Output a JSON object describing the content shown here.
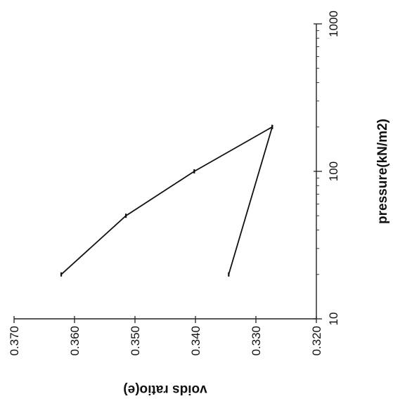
{
  "chart_data": {
    "type": "line",
    "orientation": "rotated-90",
    "xlabel": "pressure(kN/m2)",
    "ylabel": "voids ratio(e)",
    "x_scale": "log",
    "xlim": [
      10,
      1000
    ],
    "ylim": [
      0.32,
      0.37
    ],
    "x_ticks": [
      10,
      100,
      1000
    ],
    "x_tick_labels": [
      "10",
      "100",
      "1000"
    ],
    "y_ticks": [
      0.32,
      0.33,
      0.34,
      0.35,
      0.36,
      0.37
    ],
    "y_tick_labels": [
      "0.320",
      "0.330",
      "0.340",
      "0.350",
      "0.360",
      "0.370"
    ],
    "grid": false,
    "series": [
      {
        "points": [
          {
            "x": 20,
            "y": 0.3622
          },
          {
            "x": 50,
            "y": 0.3515
          },
          {
            "x": 100,
            "y": 0.3402
          },
          {
            "x": 200,
            "y": 0.3273
          }
        ]
      },
      {
        "points": [
          {
            "x": 200,
            "y": 0.3273
          },
          {
            "x": 20,
            "y": 0.3345
          }
        ]
      }
    ]
  }
}
